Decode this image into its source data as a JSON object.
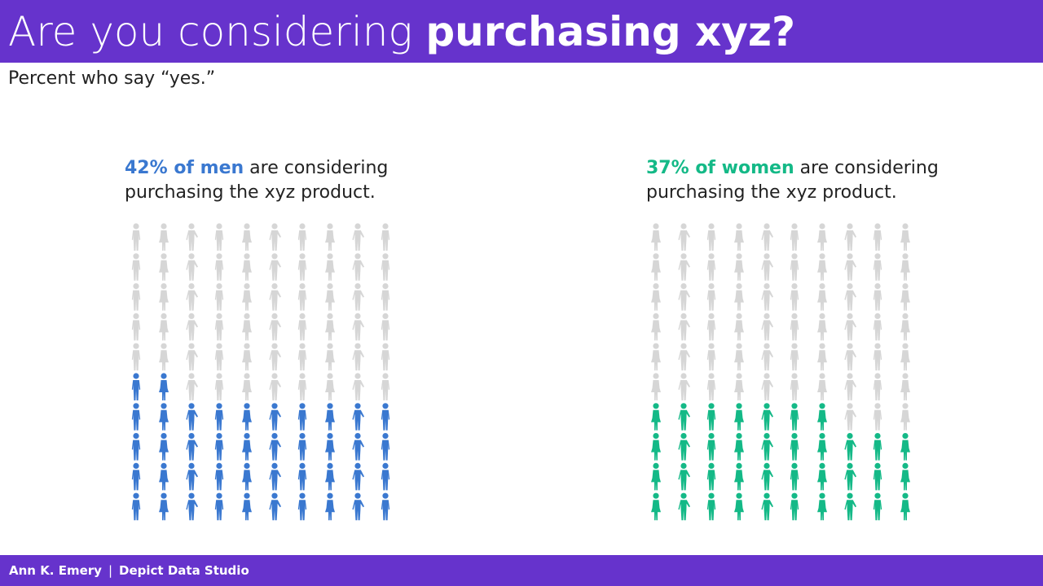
{
  "header": {
    "title_light": "Are you considering ",
    "title_bold": "purchasing xyz?"
  },
  "subtitle": "Percent who say “yes.”",
  "colors": {
    "header_bg": "#6633cc",
    "inactive": "#d6d6d6",
    "men": "#3a78d0",
    "women": "#14b987"
  },
  "chart_data": [
    {
      "type": "pictogram",
      "label_highlight": "42% of men",
      "label_rest": " are considering purchasing the xyz product.",
      "value": 42,
      "total": 100,
      "columns": 10,
      "rows": 10,
      "color": "#3a78d0",
      "inactive_color": "#d6d6d6",
      "icon": "person-icon"
    },
    {
      "type": "pictogram",
      "label_highlight": "37% of women",
      "label_rest": " are considering purchasing the xyz product.",
      "value": 37,
      "total": 100,
      "columns": 10,
      "rows": 10,
      "color": "#14b987",
      "inactive_color": "#d6d6d6",
      "icon": "person-icon"
    }
  ],
  "footer": {
    "author": "Ann K. Emery",
    "separator": "|",
    "studio": "Depict Data Studio"
  }
}
